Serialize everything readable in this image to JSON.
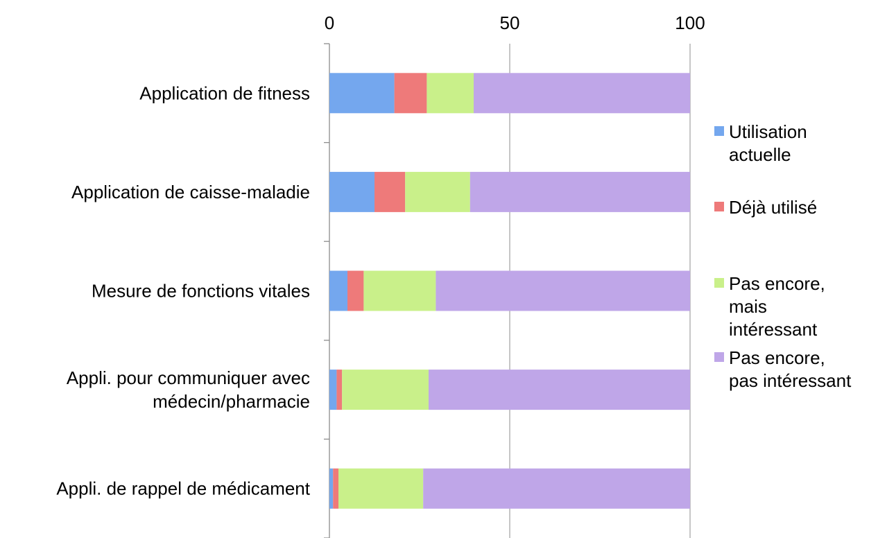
{
  "chart_data": {
    "type": "bar",
    "orientation": "horizontal",
    "stacked": true,
    "title": "",
    "xlabel": "",
    "ylabel": "",
    "xlim": [
      0,
      100
    ],
    "xticks": [
      "0",
      "50",
      "100"
    ],
    "grid": true,
    "legend_position": "right",
    "categories": [
      [
        "Application de fitness"
      ],
      [
        "Application de caisse-maladie"
      ],
      [
        "Mesure de fonctions vitales"
      ],
      [
        "Appli. pour communiquer avec",
        "médecin/pharmacie"
      ],
      [
        "Appli. de rappel de médicament"
      ]
    ],
    "series": [
      {
        "name": [
          "Utilisation",
          "actuelle"
        ],
        "color": "#74a7ee",
        "values": [
          18,
          12.5,
          5,
          2,
          1
        ]
      },
      {
        "name": [
          "Déjà utilisé"
        ],
        "color": "#ee7a7a",
        "values": [
          9,
          8.5,
          4.5,
          1.5,
          1.5
        ]
      },
      {
        "name": [
          "Pas encore,",
          "mais",
          "intéressant"
        ],
        "color": "#c9f08a",
        "values": [
          13,
          18,
          20,
          24,
          23.5
        ]
      },
      {
        "name": [
          "Pas encore,",
          "pas intéressant"
        ],
        "color": "#bfa6e8",
        "values": [
          60,
          61,
          70.5,
          72.5,
          74
        ]
      }
    ]
  }
}
